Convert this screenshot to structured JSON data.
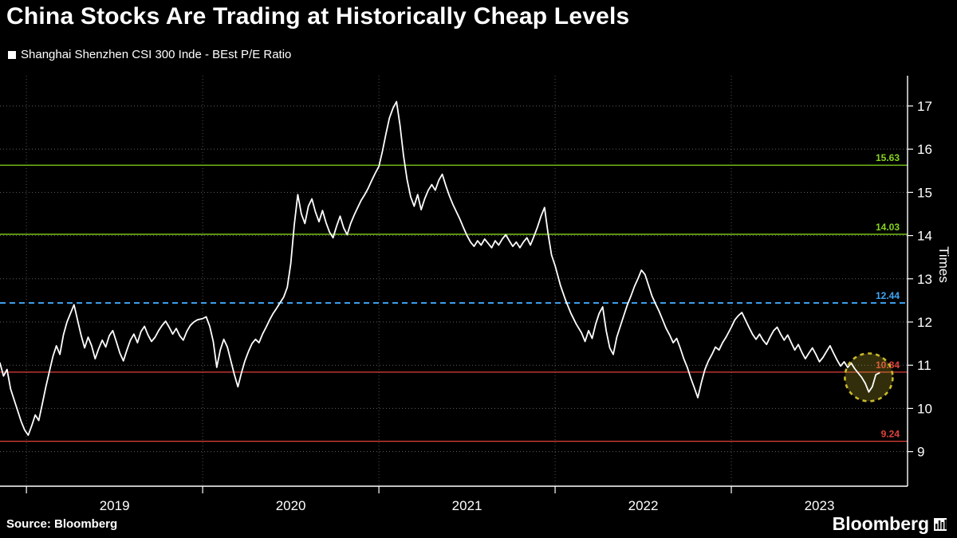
{
  "title": "China Stocks Are Trading at Historically Cheap Levels",
  "legend": {
    "label": "Shanghai Shenzhen CSI 300 Inde - BEst P/E Ratio",
    "marker_color": "#ffffff"
  },
  "source": "Source: Bloomberg",
  "brand": "Bloomberg",
  "chart_data": {
    "type": "line",
    "title": "China Stocks Are Trading at Historically Cheap Levels",
    "series_name": "Shanghai Shenzhen CSI 300 Inde - BEst P/E Ratio",
    "series_color": "#ffffff",
    "ylabel": "Times",
    "ylim": [
      8.2,
      17.7
    ],
    "y_ticks": [
      9,
      10,
      11,
      12,
      13,
      14,
      15,
      16,
      17
    ],
    "x_year_ticks": [
      2019,
      2020,
      2021,
      2022,
      2023
    ],
    "x_range": [
      2018.85,
      2024.0
    ],
    "grid": true,
    "reference_lines": [
      {
        "value": 15.63,
        "label": "15.63",
        "color": "#86d41e",
        "style": "solid"
      },
      {
        "value": 14.03,
        "label": "14.03",
        "color": "#86d41e",
        "style": "solid"
      },
      {
        "value": 12.44,
        "label": "12.44",
        "color": "#3fa5f5",
        "style": "dashed"
      },
      {
        "value": 10.84,
        "label": "10.84",
        "color": "#e0413b",
        "style": "solid"
      },
      {
        "value": 9.24,
        "label": "9.24",
        "color": "#e0413b",
        "style": "solid"
      }
    ],
    "highlight_circle": {
      "x": 2023.78,
      "y": 10.72,
      "radius_px": 30,
      "color": "#c9b92c"
    },
    "points": [
      [
        2018.85,
        11.05
      ],
      [
        2018.87,
        10.75
      ],
      [
        2018.89,
        10.9
      ],
      [
        2018.91,
        10.45
      ],
      [
        2018.93,
        10.2
      ],
      [
        2018.95,
        9.95
      ],
      [
        2018.97,
        9.7
      ],
      [
        2018.99,
        9.5
      ],
      [
        2019.01,
        9.38
      ],
      [
        2019.03,
        9.6
      ],
      [
        2019.05,
        9.85
      ],
      [
        2019.07,
        9.72
      ],
      [
        2019.09,
        10.1
      ],
      [
        2019.11,
        10.5
      ],
      [
        2019.13,
        10.85
      ],
      [
        2019.15,
        11.2
      ],
      [
        2019.17,
        11.45
      ],
      [
        2019.19,
        11.25
      ],
      [
        2019.21,
        11.7
      ],
      [
        2019.23,
        12.0
      ],
      [
        2019.25,
        12.2
      ],
      [
        2019.27,
        12.4
      ],
      [
        2019.29,
        12.05
      ],
      [
        2019.31,
        11.7
      ],
      [
        2019.33,
        11.4
      ],
      [
        2019.35,
        11.65
      ],
      [
        2019.37,
        11.45
      ],
      [
        2019.39,
        11.15
      ],
      [
        2019.41,
        11.38
      ],
      [
        2019.43,
        11.58
      ],
      [
        2019.45,
        11.42
      ],
      [
        2019.47,
        11.68
      ],
      [
        2019.49,
        11.8
      ],
      [
        2019.51,
        11.55
      ],
      [
        2019.53,
        11.28
      ],
      [
        2019.55,
        11.1
      ],
      [
        2019.57,
        11.35
      ],
      [
        2019.59,
        11.58
      ],
      [
        2019.61,
        11.72
      ],
      [
        2019.63,
        11.52
      ],
      [
        2019.65,
        11.78
      ],
      [
        2019.67,
        11.9
      ],
      [
        2019.69,
        11.7
      ],
      [
        2019.71,
        11.55
      ],
      [
        2019.73,
        11.65
      ],
      [
        2019.75,
        11.8
      ],
      [
        2019.77,
        11.92
      ],
      [
        2019.79,
        12.02
      ],
      [
        2019.81,
        11.88
      ],
      [
        2019.83,
        11.72
      ],
      [
        2019.85,
        11.85
      ],
      [
        2019.87,
        11.68
      ],
      [
        2019.89,
        11.58
      ],
      [
        2019.91,
        11.78
      ],
      [
        2019.93,
        11.92
      ],
      [
        2019.95,
        12.0
      ],
      [
        2019.97,
        12.05
      ],
      [
        2020.0,
        12.08
      ],
      [
        2020.02,
        12.12
      ],
      [
        2020.04,
        11.9
      ],
      [
        2020.06,
        11.55
      ],
      [
        2020.08,
        10.95
      ],
      [
        2020.1,
        11.35
      ],
      [
        2020.12,
        11.6
      ],
      [
        2020.14,
        11.42
      ],
      [
        2020.16,
        11.1
      ],
      [
        2020.18,
        10.78
      ],
      [
        2020.2,
        10.5
      ],
      [
        2020.22,
        10.82
      ],
      [
        2020.24,
        11.1
      ],
      [
        2020.26,
        11.32
      ],
      [
        2020.28,
        11.5
      ],
      [
        2020.3,
        11.6
      ],
      [
        2020.32,
        11.52
      ],
      [
        2020.34,
        11.72
      ],
      [
        2020.36,
        11.88
      ],
      [
        2020.38,
        12.05
      ],
      [
        2020.4,
        12.2
      ],
      [
        2020.42,
        12.32
      ],
      [
        2020.44,
        12.45
      ],
      [
        2020.46,
        12.58
      ],
      [
        2020.48,
        12.8
      ],
      [
        2020.5,
        13.35
      ],
      [
        2020.52,
        14.25
      ],
      [
        2020.54,
        14.95
      ],
      [
        2020.56,
        14.5
      ],
      [
        2020.58,
        14.28
      ],
      [
        2020.6,
        14.68
      ],
      [
        2020.62,
        14.85
      ],
      [
        2020.64,
        14.55
      ],
      [
        2020.66,
        14.32
      ],
      [
        2020.68,
        14.58
      ],
      [
        2020.7,
        14.3
      ],
      [
        2020.72,
        14.08
      ],
      [
        2020.74,
        13.95
      ],
      [
        2020.76,
        14.22
      ],
      [
        2020.78,
        14.45
      ],
      [
        2020.8,
        14.18
      ],
      [
        2020.82,
        14.02
      ],
      [
        2020.84,
        14.28
      ],
      [
        2020.86,
        14.48
      ],
      [
        2020.88,
        14.65
      ],
      [
        2020.9,
        14.82
      ],
      [
        2020.92,
        14.95
      ],
      [
        2020.94,
        15.1
      ],
      [
        2020.96,
        15.28
      ],
      [
        2020.98,
        15.45
      ],
      [
        2021.0,
        15.6
      ],
      [
        2021.02,
        15.95
      ],
      [
        2021.04,
        16.35
      ],
      [
        2021.06,
        16.72
      ],
      [
        2021.08,
        16.95
      ],
      [
        2021.1,
        17.1
      ],
      [
        2021.12,
        16.55
      ],
      [
        2021.14,
        15.85
      ],
      [
        2021.16,
        15.3
      ],
      [
        2021.18,
        14.9
      ],
      [
        2021.2,
        14.68
      ],
      [
        2021.22,
        14.95
      ],
      [
        2021.24,
        14.6
      ],
      [
        2021.26,
        14.85
      ],
      [
        2021.28,
        15.05
      ],
      [
        2021.3,
        15.18
      ],
      [
        2021.32,
        15.05
      ],
      [
        2021.34,
        15.28
      ],
      [
        2021.36,
        15.42
      ],
      [
        2021.38,
        15.15
      ],
      [
        2021.4,
        14.92
      ],
      [
        2021.42,
        14.72
      ],
      [
        2021.44,
        14.55
      ],
      [
        2021.46,
        14.38
      ],
      [
        2021.48,
        14.18
      ],
      [
        2021.5,
        14.0
      ],
      [
        2021.52,
        13.85
      ],
      [
        2021.54,
        13.75
      ],
      [
        2021.56,
        13.88
      ],
      [
        2021.58,
        13.78
      ],
      [
        2021.6,
        13.92
      ],
      [
        2021.62,
        13.82
      ],
      [
        2021.64,
        13.72
      ],
      [
        2021.66,
        13.88
      ],
      [
        2021.68,
        13.78
      ],
      [
        2021.7,
        13.92
      ],
      [
        2021.72,
        14.02
      ],
      [
        2021.74,
        13.88
      ],
      [
        2021.76,
        13.75
      ],
      [
        2021.78,
        13.85
      ],
      [
        2021.8,
        13.72
      ],
      [
        2021.82,
        13.85
      ],
      [
        2021.84,
        13.95
      ],
      [
        2021.86,
        13.78
      ],
      [
        2021.88,
        13.98
      ],
      [
        2021.9,
        14.2
      ],
      [
        2021.92,
        14.45
      ],
      [
        2021.94,
        14.65
      ],
      [
        2021.96,
        14.05
      ],
      [
        2021.98,
        13.55
      ],
      [
        2022.0,
        13.3
      ],
      [
        2022.03,
        12.85
      ],
      [
        2022.06,
        12.5
      ],
      [
        2022.09,
        12.2
      ],
      [
        2022.12,
        11.95
      ],
      [
        2022.15,
        11.75
      ],
      [
        2022.17,
        11.55
      ],
      [
        2022.19,
        11.8
      ],
      [
        2022.21,
        11.62
      ],
      [
        2022.23,
        11.95
      ],
      [
        2022.25,
        12.2
      ],
      [
        2022.27,
        12.35
      ],
      [
        2022.29,
        11.8
      ],
      [
        2022.31,
        11.4
      ],
      [
        2022.33,
        11.25
      ],
      [
        2022.35,
        11.65
      ],
      [
        2022.37,
        11.9
      ],
      [
        2022.39,
        12.15
      ],
      [
        2022.41,
        12.4
      ],
      [
        2022.43,
        12.6
      ],
      [
        2022.45,
        12.82
      ],
      [
        2022.47,
        13.0
      ],
      [
        2022.49,
        13.2
      ],
      [
        2022.51,
        13.1
      ],
      [
        2022.53,
        12.85
      ],
      [
        2022.55,
        12.6
      ],
      [
        2022.57,
        12.42
      ],
      [
        2022.59,
        12.25
      ],
      [
        2022.61,
        12.05
      ],
      [
        2022.63,
        11.85
      ],
      [
        2022.65,
        11.7
      ],
      [
        2022.67,
        11.52
      ],
      [
        2022.69,
        11.62
      ],
      [
        2022.71,
        11.4
      ],
      [
        2022.73,
        11.15
      ],
      [
        2022.75,
        10.95
      ],
      [
        2022.77,
        10.7
      ],
      [
        2022.79,
        10.48
      ],
      [
        2022.81,
        10.25
      ],
      [
        2022.83,
        10.6
      ],
      [
        2022.85,
        10.9
      ],
      [
        2022.87,
        11.1
      ],
      [
        2022.89,
        11.25
      ],
      [
        2022.91,
        11.42
      ],
      [
        2022.93,
        11.35
      ],
      [
        2022.95,
        11.52
      ],
      [
        2022.97,
        11.65
      ],
      [
        2023.0,
        11.88
      ],
      [
        2023.02,
        12.05
      ],
      [
        2023.04,
        12.15
      ],
      [
        2023.06,
        12.22
      ],
      [
        2023.08,
        12.05
      ],
      [
        2023.1,
        11.88
      ],
      [
        2023.12,
        11.72
      ],
      [
        2023.14,
        11.6
      ],
      [
        2023.16,
        11.72
      ],
      [
        2023.18,
        11.58
      ],
      [
        2023.2,
        11.48
      ],
      [
        2023.22,
        11.65
      ],
      [
        2023.24,
        11.8
      ],
      [
        2023.26,
        11.88
      ],
      [
        2023.28,
        11.72
      ],
      [
        2023.3,
        11.58
      ],
      [
        2023.32,
        11.7
      ],
      [
        2023.34,
        11.52
      ],
      [
        2023.36,
        11.35
      ],
      [
        2023.38,
        11.48
      ],
      [
        2023.4,
        11.3
      ],
      [
        2023.42,
        11.15
      ],
      [
        2023.44,
        11.28
      ],
      [
        2023.46,
        11.4
      ],
      [
        2023.48,
        11.25
      ],
      [
        2023.5,
        11.08
      ],
      [
        2023.52,
        11.18
      ],
      [
        2023.54,
        11.32
      ],
      [
        2023.56,
        11.45
      ],
      [
        2023.58,
        11.28
      ],
      [
        2023.6,
        11.12
      ],
      [
        2023.62,
        10.98
      ],
      [
        2023.64,
        11.08
      ],
      [
        2023.66,
        10.95
      ],
      [
        2023.68,
        11.05
      ],
      [
        2023.7,
        10.92
      ],
      [
        2023.72,
        10.82
      ],
      [
        2023.74,
        10.72
      ],
      [
        2023.76,
        10.58
      ],
      [
        2023.78,
        10.38
      ],
      [
        2023.8,
        10.5
      ],
      [
        2023.82,
        10.78
      ],
      [
        2023.84,
        10.82
      ]
    ]
  }
}
